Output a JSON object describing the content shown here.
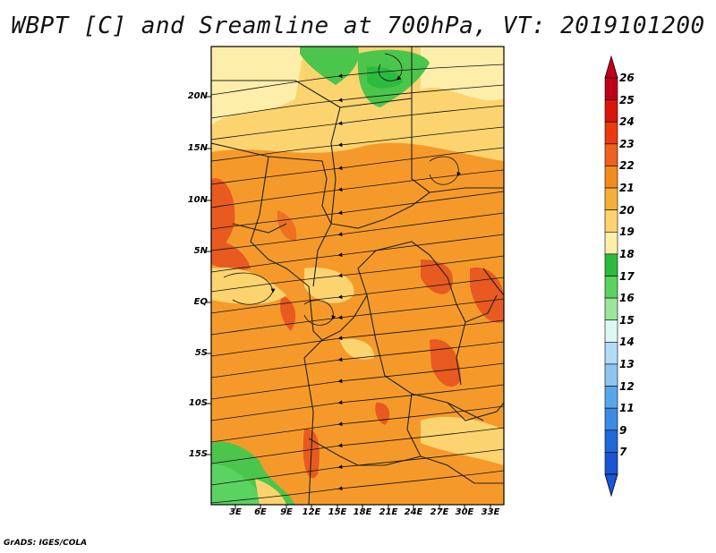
{
  "title": "WBPT [C] and Sreamline at 700hPa, VT: 2019101200",
  "footer": "GrADS: IGES/COLA",
  "latitude_labels": [
    "20N",
    "15N",
    "10N",
    "5N",
    "EQ",
    "5S",
    "10S",
    "15S"
  ],
  "longitude_labels": [
    "3E",
    "6E",
    "9E",
    "12E",
    "15E",
    "18E",
    "21E",
    "24E",
    "27E",
    "30E",
    "33E"
  ],
  "colorbar": {
    "labels": [
      "26",
      "25",
      "24",
      "23",
      "22",
      "21",
      "20",
      "19",
      "18",
      "17",
      "16",
      "15",
      "14",
      "13",
      "12",
      "11",
      "9",
      "7"
    ],
    "colors": [
      "#c0001a",
      "#d8160c",
      "#ec3a10",
      "#f06020",
      "#f28c1c",
      "#f6b037",
      "#fbd470",
      "#fdeeaa",
      "#2dbb3f",
      "#5ad360",
      "#9ae69a",
      "#dcf8f2",
      "#b2dcf6",
      "#8ec6f1",
      "#5aa6eb",
      "#3d8ae3",
      "#2068d9",
      "#1a55d3"
    ]
  },
  "colors": {
    "hot": "#e85a1f",
    "warm": "#f59a2a",
    "mild": "#fcd36e",
    "cool": "#4cc54c"
  }
}
